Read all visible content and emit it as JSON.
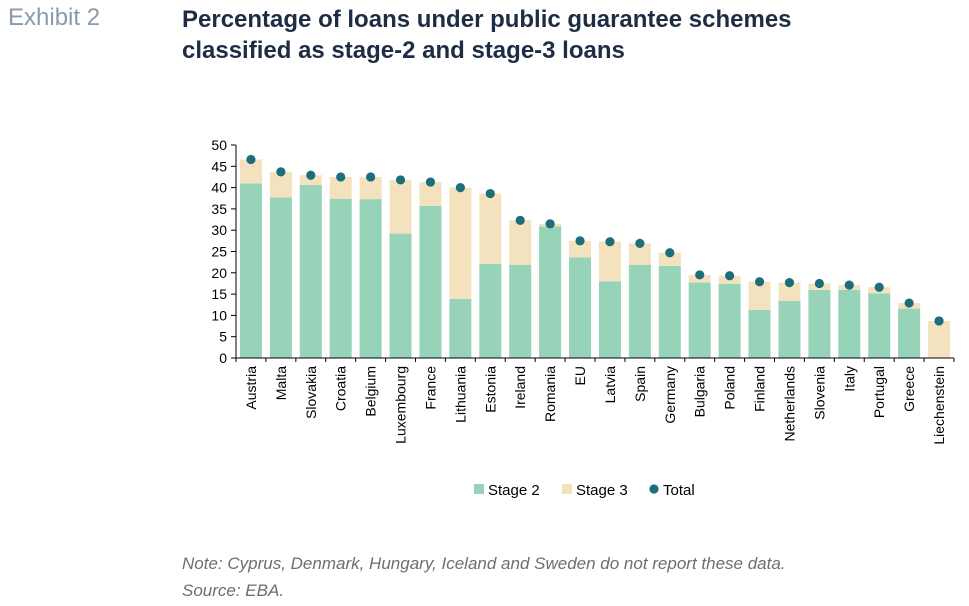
{
  "header": {
    "exhibit": "Exhibit 2",
    "title_line1": "Percentage of loans under public guarantee schemes",
    "title_line2": "classified as stage-2 and stage-3 loans"
  },
  "footer": {
    "note": "Note: Cyprus, Denmark, Hungary, Iceland and Sweden do not report these data.",
    "source": "Source: EBA."
  },
  "colors": {
    "stage2": "#96d3b8",
    "stage3": "#f4e2bf",
    "total": "#1b6e7a",
    "axis": "#000000"
  },
  "chart_data": {
    "type": "bar",
    "stacked": true,
    "title": "",
    "xlabel": "",
    "ylabel": "",
    "ylim": [
      0,
      50
    ],
    "yticks": [
      0,
      5,
      10,
      15,
      20,
      25,
      30,
      35,
      40,
      45,
      50
    ],
    "grid": false,
    "legend_position": "bottom",
    "categories": [
      "Austria",
      "Malta",
      "Slovakia",
      "Croatia",
      "Belgium",
      "Luxembourg",
      "France",
      "Lithuania",
      "Estonia",
      "Ireland",
      "Romania",
      "EU",
      "Latvia",
      "Spain",
      "Germany",
      "Bulgaria",
      "Poland",
      "Finland",
      "Netherlands",
      "Slovenia",
      "Italy",
      "Portugal",
      "Greece",
      "Liechenstein"
    ],
    "series": [
      {
        "name": "Stage 2",
        "kind": "bar",
        "values": [
          41.0,
          37.7,
          40.6,
          37.4,
          37.3,
          29.2,
          35.7,
          13.9,
          22.1,
          21.9,
          30.9,
          23.6,
          18.0,
          21.9,
          21.6,
          17.7,
          17.4,
          11.3,
          13.4,
          16.0,
          16.0,
          15.2,
          11.6,
          0
        ]
      },
      {
        "name": "Stage 3",
        "kind": "bar",
        "values": [
          5.6,
          6.0,
          2.3,
          5.1,
          5.2,
          12.6,
          5.6,
          26.1,
          16.5,
          10.4,
          0.6,
          3.9,
          9.3,
          5.0,
          3.1,
          1.8,
          1.9,
          6.6,
          4.3,
          1.5,
          1.1,
          1.4,
          1.3,
          8.7
        ]
      },
      {
        "name": "Total",
        "kind": "dot",
        "values": [
          46.6,
          43.7,
          42.9,
          42.5,
          42.5,
          41.8,
          41.3,
          40.0,
          38.6,
          32.3,
          31.5,
          27.5,
          27.3,
          26.9,
          24.7,
          19.5,
          19.3,
          17.9,
          17.7,
          17.5,
          17.1,
          16.6,
          12.9,
          8.7
        ]
      }
    ]
  }
}
